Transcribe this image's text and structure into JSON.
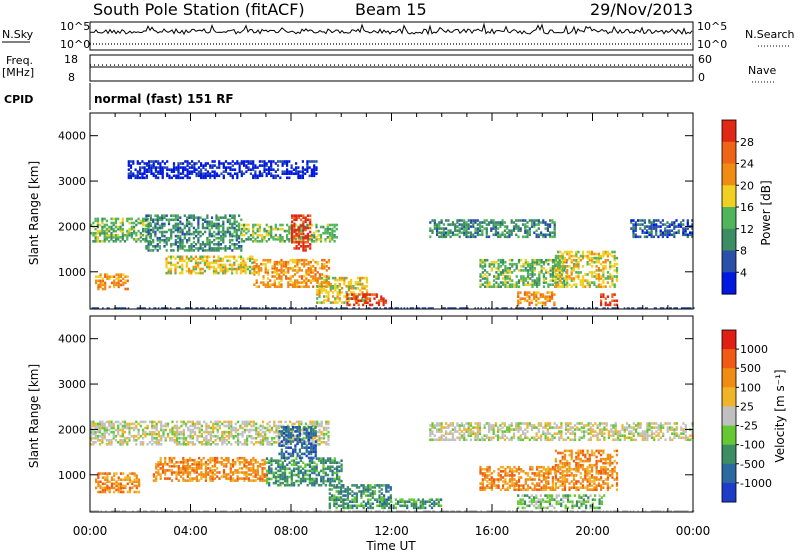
{
  "header": {
    "station": "South Pole Station (fitACF)",
    "beam": "Beam 15",
    "date": "29/Nov/2013"
  },
  "upper_panels": {
    "nsky_label": "N.Sky",
    "nsearch_label": "N.Search",
    "nsky_ticks": [
      "10^5",
      "10^0"
    ],
    "nsearch_ticks": [
      "10^5",
      "10^0"
    ],
    "freq_label_1": "Freq.",
    "freq_label_2": "[MHz]",
    "freq_ticks": [
      "18",
      "8"
    ],
    "nave_label": "Nave",
    "nave_ticks": [
      "60",
      "0"
    ],
    "cpid_label": "CPID",
    "cpid_value": "normal (fast) 151 RF"
  },
  "chart_data": [
    {
      "type": "heatmap",
      "name": "power",
      "ylabel": "Slant Range [km]",
      "xlabel": "",
      "ylim": [
        180,
        4500
      ],
      "y_ticks": [
        "1000",
        "2000",
        "3000",
        "4000"
      ],
      "x_ticks": [
        "00:00",
        "04:00",
        "08:00",
        "12:00",
        "16:00",
        "20:00",
        "00:00"
      ],
      "colorbar_label": "Power [dB]",
      "colorbar_ticks": [
        "4",
        "8",
        "12",
        "16",
        "20",
        "24",
        "28"
      ],
      "colors": [
        "#0018e0",
        "#2850a8",
        "#3c8c64",
        "#50b45a",
        "#f0d020",
        "#f08c14",
        "#f06418",
        "#e02814"
      ],
      "patches": [
        {
          "t0": 0.0,
          "t1": 2.4,
          "r0": 1700,
          "r1": 2200,
          "level": 3
        },
        {
          "t0": 2.2,
          "t1": 6.0,
          "r0": 1500,
          "r1": 2300,
          "level": 2
        },
        {
          "t0": 6.0,
          "t1": 9.8,
          "r0": 1700,
          "r1": 2100,
          "level": 3
        },
        {
          "t0": 8.0,
          "t1": 8.8,
          "r0": 1500,
          "r1": 2300,
          "level": 7
        },
        {
          "t0": 0.2,
          "t1": 1.5,
          "r0": 650,
          "r1": 1000,
          "level": 5
        },
        {
          "t0": 3.0,
          "t1": 6.5,
          "r0": 1000,
          "r1": 1400,
          "level": 4
        },
        {
          "t0": 6.5,
          "t1": 9.5,
          "r0": 700,
          "r1": 1300,
          "level": 5
        },
        {
          "t0": 9.0,
          "t1": 11.0,
          "r0": 350,
          "r1": 900,
          "level": 4
        },
        {
          "t0": 10.2,
          "t1": 11.8,
          "r0": 300,
          "r1": 550,
          "level": 7
        },
        {
          "t0": 13.5,
          "t1": 18.5,
          "r0": 1800,
          "r1": 2200,
          "level": 2
        },
        {
          "t0": 15.5,
          "t1": 19.0,
          "r0": 700,
          "r1": 1300,
          "level": 3
        },
        {
          "t0": 17.0,
          "t1": 18.5,
          "r0": 300,
          "r1": 600,
          "level": 5
        },
        {
          "t0": 18.5,
          "t1": 21.0,
          "r0": 700,
          "r1": 1500,
          "level": 4
        },
        {
          "t0": 20.3,
          "t1": 21.0,
          "r0": 300,
          "r1": 550,
          "level": 7
        },
        {
          "t0": 21.5,
          "t1": 24.0,
          "r0": 1800,
          "r1": 2200,
          "level": 1
        },
        {
          "t0": 1.5,
          "t1": 9.0,
          "r0": 3100,
          "r1": 3500,
          "level": 0
        }
      ]
    },
    {
      "type": "heatmap",
      "name": "velocity",
      "ylabel": "Slant Range [km]",
      "xlabel": "Time UT",
      "ylim": [
        180,
        4500
      ],
      "y_ticks": [
        "1000",
        "2000",
        "3000",
        "4000"
      ],
      "x_ticks": [
        "00:00",
        "04:00",
        "08:00",
        "12:00",
        "16:00",
        "20:00",
        "00:00"
      ],
      "colorbar_label": "Velocity [m s⁻¹]",
      "colorbar_ticks": [
        "1000",
        "500",
        "100",
        "25",
        "-25",
        "-100",
        "-500",
        "-1000"
      ],
      "colors": [
        "#1e3cc8",
        "#2a6aa0",
        "#3c8c64",
        "#64c832",
        "#c0c0c0",
        "#f0b428",
        "#f08c14",
        "#f05a14",
        "#e01e14"
      ],
      "patches": [
        {
          "t0": 0.0,
          "t1": 9.5,
          "r0": 1700,
          "r1": 2200,
          "level": 4
        },
        {
          "t0": 13.5,
          "t1": 24.0,
          "r0": 1800,
          "r1": 2200,
          "level": 4
        },
        {
          "t0": 0.2,
          "t1": 2.0,
          "r0": 650,
          "r1": 1100,
          "level": 6
        },
        {
          "t0": 2.5,
          "t1": 7.0,
          "r0": 900,
          "r1": 1400,
          "level": 6
        },
        {
          "t0": 7.5,
          "t1": 9.0,
          "r0": 1400,
          "r1": 2100,
          "level": 1
        },
        {
          "t0": 7.0,
          "t1": 10.0,
          "r0": 800,
          "r1": 1400,
          "level": 2
        },
        {
          "t0": 9.5,
          "t1": 12.0,
          "r0": 300,
          "r1": 800,
          "level": 2
        },
        {
          "t0": 15.5,
          "t1": 18.5,
          "r0": 700,
          "r1": 1200,
          "level": 6
        },
        {
          "t0": 18.5,
          "t1": 21.0,
          "r0": 700,
          "r1": 1600,
          "level": 6
        },
        {
          "t0": 17.0,
          "t1": 20.5,
          "r0": 300,
          "r1": 600,
          "level": 3
        },
        {
          "t0": 11.5,
          "t1": 14.0,
          "r0": 300,
          "r1": 500,
          "level": 2
        }
      ]
    }
  ]
}
